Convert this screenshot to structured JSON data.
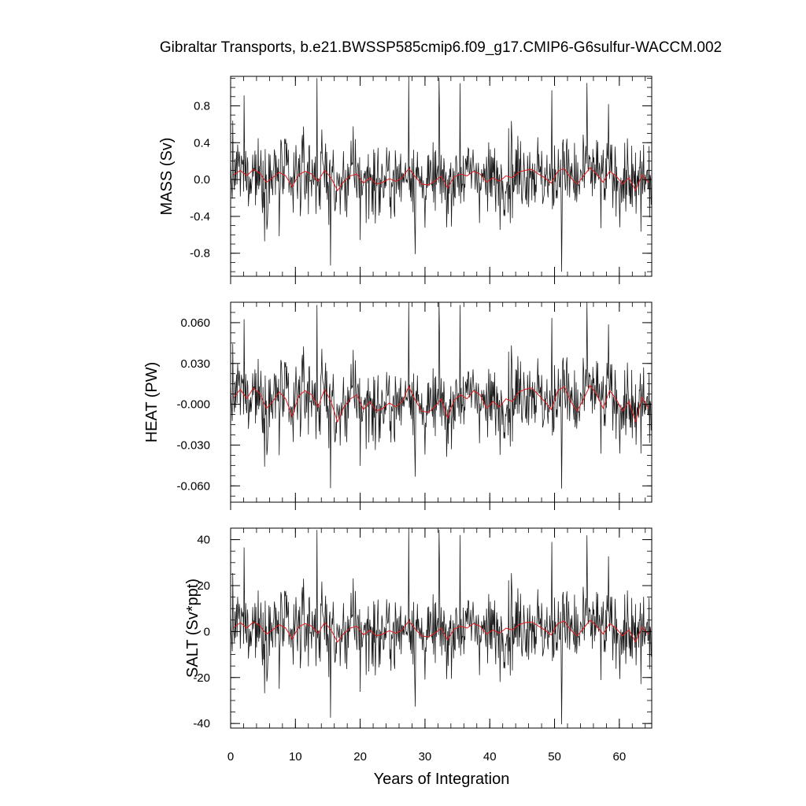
{
  "chart_data": {
    "type": "line",
    "title": "Gibraltar Transports, b.e21.BWSSP585cmip6.f09_g17.CMIP6-G6sulfur-WACCM.002",
    "xlabel": "Years of Integration",
    "x_ticks": [
      "0",
      "10",
      "20",
      "30",
      "40",
      "50",
      "60"
    ],
    "x_tick_values": [
      0,
      10,
      20,
      30,
      40,
      50,
      60
    ],
    "xlim": [
      0,
      65
    ],
    "grid": false,
    "panels": [
      {
        "name": "mass",
        "ylabel": "MASS (Sv)",
        "ylim": [
          -1.05,
          1.12
        ],
        "y_ticks": [
          "-0.8",
          "-0.4",
          "0.0",
          "0.4",
          "0.8"
        ],
        "y_tick_values": [
          -0.8,
          -0.4,
          0.0,
          0.4,
          0.8
        ],
        "monthly_range": [
          -1.05,
          1.12
        ],
        "monthly_color": "#1a1a1a",
        "annual_color": "#e31a1c",
        "annual_mean": [
          0.05,
          0.1,
          0.04,
          0.11,
          0.07,
          -0.03,
          0.02,
          0.08,
          0.04,
          -0.08,
          0.05,
          0.09,
          0.06,
          -0.02,
          0.1,
          0.02,
          -0.12,
          -0.02,
          0.04,
          0.06,
          -0.04,
          0.02,
          -0.05,
          -0.03,
          0.01,
          -0.02,
          0.02,
          0.12,
          0.03,
          -0.05,
          -0.06,
          -0.02,
          0.04,
          -0.09,
          0.03,
          0.06,
          0.04,
          0.09,
          0.06,
          -0.03,
          0.02,
          -0.02,
          0.04,
          0.02,
          0.08,
          0.1,
          0.11,
          0.06,
          0.02,
          -0.04,
          0.09,
          0.12,
          0.02,
          -0.05,
          0.04,
          0.13,
          0.06,
          -0.03,
          0.09,
          0.04,
          -0.05,
          0.02,
          -0.12,
          0.05,
          -0.03
        ]
      },
      {
        "name": "heat",
        "ylabel": "HEAT (PW)",
        "ylim": [
          -0.072,
          0.075
        ],
        "y_ticks": [
          "-0.060",
          "-0.030",
          "-0.000",
          "0.030",
          "0.060"
        ],
        "y_tick_values": [
          -0.06,
          -0.03,
          0.0,
          0.03,
          0.06
        ],
        "monthly_range": [
          -0.072,
          0.075
        ],
        "monthly_color": "#1a1a1a",
        "annual_color": "#e31a1c",
        "annual_mean": [
          0.005,
          0.011,
          0.004,
          0.012,
          0.008,
          -0.003,
          0.002,
          0.009,
          0.004,
          -0.009,
          0.006,
          0.01,
          0.007,
          -0.002,
          0.011,
          0.002,
          -0.013,
          -0.002,
          0.004,
          0.007,
          -0.004,
          0.002,
          -0.005,
          -0.003,
          0.001,
          -0.002,
          0.002,
          0.013,
          0.003,
          -0.005,
          -0.006,
          -0.002,
          0.004,
          -0.01,
          0.003,
          0.007,
          0.004,
          0.01,
          0.007,
          -0.003,
          0.002,
          -0.002,
          0.004,
          0.002,
          0.009,
          0.011,
          0.012,
          0.007,
          0.002,
          -0.004,
          0.01,
          0.013,
          0.002,
          -0.005,
          0.004,
          0.014,
          0.007,
          -0.003,
          0.01,
          0.004,
          -0.005,
          0.002,
          -0.013,
          0.005,
          -0.003
        ]
      },
      {
        "name": "salt",
        "ylabel": "SALT (Sv*ppt)",
        "ylim": [
          -42,
          45
        ],
        "y_ticks": [
          "-40",
          "-20",
          "0",
          "20",
          "40"
        ],
        "y_tick_values": [
          -40,
          -20,
          0,
          20,
          40
        ],
        "monthly_range": [
          -42,
          45
        ],
        "monthly_color": "#1a1a1a",
        "annual_color": "#e31a1c",
        "annual_mean": [
          1.8,
          3.9,
          1.5,
          4.2,
          2.7,
          -1.1,
          0.7,
          3.0,
          1.5,
          -3.2,
          2.0,
          3.5,
          2.4,
          -0.8,
          3.9,
          0.8,
          -4.6,
          -0.8,
          1.5,
          2.4,
          -1.5,
          0.7,
          -1.9,
          -1.1,
          0.4,
          -0.8,
          0.7,
          4.6,
          1.1,
          -1.9,
          -2.3,
          -0.8,
          1.5,
          -3.5,
          1.1,
          2.4,
          1.5,
          3.5,
          2.4,
          -1.1,
          0.7,
          -0.8,
          1.5,
          0.7,
          3.0,
          3.9,
          4.2,
          2.4,
          0.7,
          -1.5,
          3.5,
          4.6,
          0.7,
          -1.9,
          1.5,
          5.0,
          2.4,
          -1.1,
          3.5,
          1.5,
          -1.9,
          0.7,
          -4.6,
          1.9,
          -1.1
        ]
      }
    ]
  }
}
